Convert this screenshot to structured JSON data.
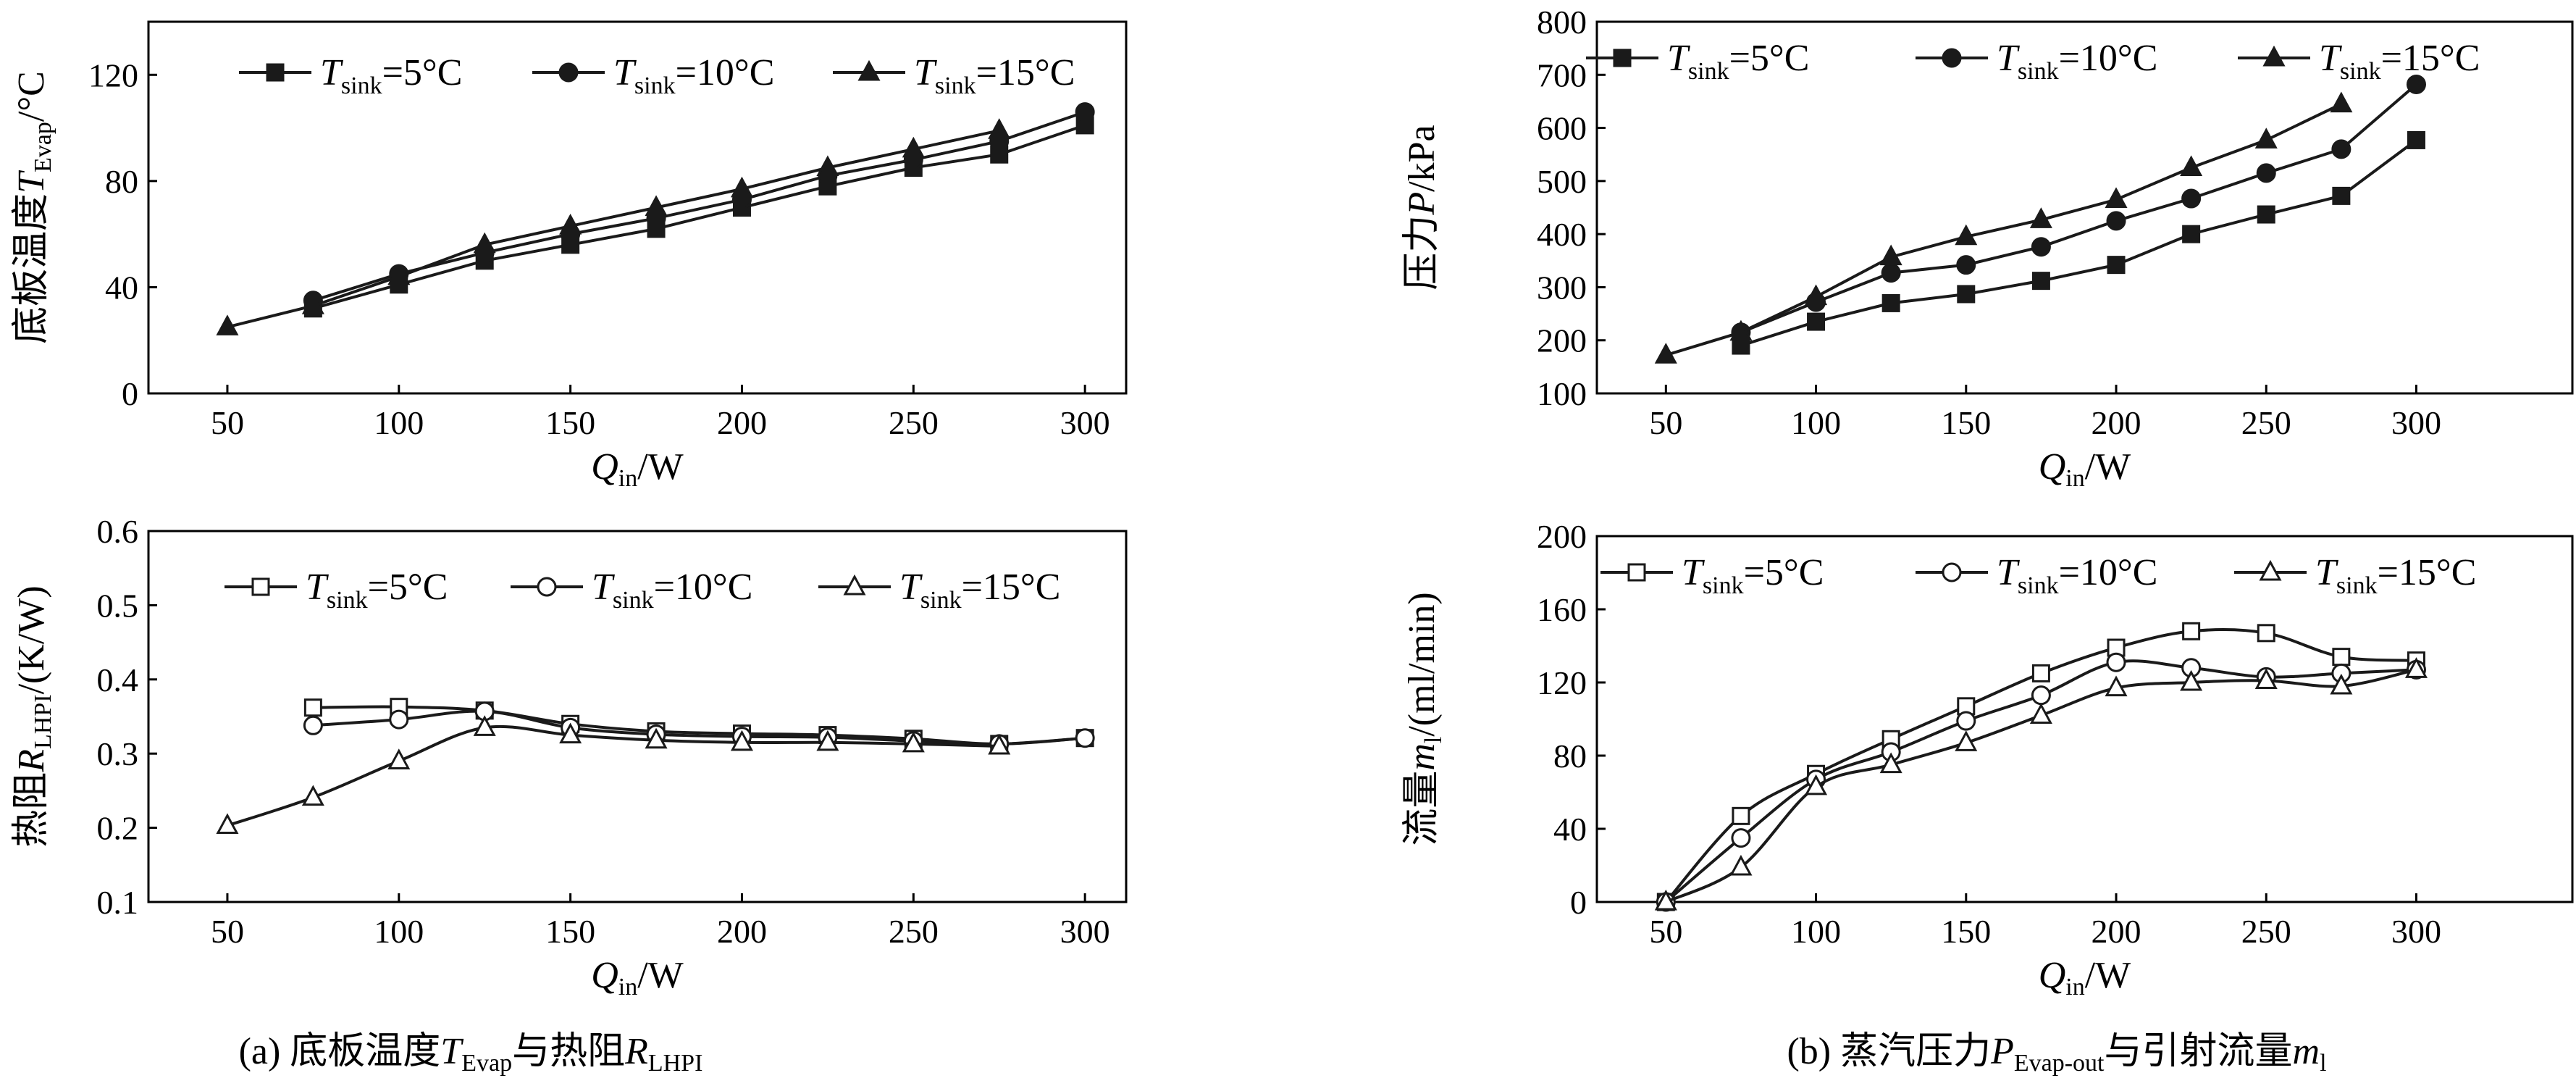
{
  "chart_data": [
    {
      "type": "line",
      "ylabel": "底板温度",
      "ylabel_symbol": "T",
      "ylabel_sub": "Evap",
      "ylabel_unit": "/°C",
      "xlabel_symbol": "Q",
      "xlabel_sub": "in",
      "xlabel_unit": "/W",
      "xlim": [
        27,
        312
      ],
      "ylim": [
        0,
        140
      ],
      "xticks": [
        50,
        100,
        150,
        200,
        250,
        300
      ],
      "yticks": [
        0,
        40,
        80,
        120
      ],
      "legend_position": "top",
      "marker_fill": "filled",
      "series": [
        {
          "name_symbol": "T",
          "name_sub": "sink",
          "name_rest": "=5°C",
          "marker": "square",
          "x": [
            75,
            100,
            125,
            150,
            175,
            200,
            225,
            250,
            275,
            300
          ],
          "y": [
            32,
            41,
            50,
            56,
            62,
            70,
            78,
            85,
            90,
            101
          ]
        },
        {
          "name_symbol": "T",
          "name_sub": "sink",
          "name_rest": "=10°C",
          "marker": "circle",
          "x": [
            75,
            100,
            125,
            150,
            175,
            200,
            225,
            250,
            275,
            300
          ],
          "y": [
            35,
            45,
            53,
            60,
            66,
            73,
            82,
            88,
            95,
            106
          ]
        },
        {
          "name_symbol": "T",
          "name_sub": "sink",
          "name_rest": "=15°C",
          "marker": "triangle",
          "x": [
            50,
            75,
            100,
            125,
            150,
            175,
            200,
            225,
            250,
            275
          ],
          "y": [
            25,
            33,
            44,
            56,
            63,
            70,
            77,
            85,
            92,
            99
          ]
        }
      ]
    },
    {
      "type": "line",
      "ylabel": "压力",
      "ylabel_symbol": "P",
      "ylabel_sub": "",
      "ylabel_unit": "/kPa",
      "xlabel_symbol": "Q",
      "xlabel_sub": "in",
      "xlabel_unit": "/W",
      "xlim": [
        27,
        352
      ],
      "ylim": [
        100,
        800
      ],
      "xticks": [
        50,
        100,
        150,
        200,
        250,
        300
      ],
      "yticks": [
        100,
        200,
        300,
        400,
        500,
        600,
        700,
        800
      ],
      "legend_position": "top",
      "marker_fill": "filled",
      "series": [
        {
          "name_symbol": "T",
          "name_sub": "sink",
          "name_rest": "=5°C",
          "marker": "square",
          "x": [
            75,
            100,
            125,
            150,
            175,
            200,
            225,
            250,
            275,
            300
          ],
          "y": [
            190,
            235,
            270,
            287,
            312,
            342,
            400,
            437,
            472,
            577
          ]
        },
        {
          "name_symbol": "T",
          "name_sub": "sink",
          "name_rest": "=10°C",
          "marker": "circle",
          "x": [
            75,
            100,
            125,
            150,
            175,
            200,
            225,
            250,
            275,
            300
          ],
          "y": [
            215,
            272,
            327,
            342,
            376,
            425,
            467,
            515,
            560,
            682
          ]
        },
        {
          "name_symbol": "T",
          "name_sub": "sink",
          "name_rest": "=15°C",
          "marker": "triangle",
          "x": [
            50,
            75,
            100,
            125,
            150,
            175,
            200,
            225,
            250,
            275
          ],
          "y": [
            172,
            215,
            282,
            357,
            395,
            427,
            465,
            525,
            577,
            645
          ]
        }
      ]
    },
    {
      "type": "line",
      "ylabel": "热阻",
      "ylabel_symbol": "R",
      "ylabel_sub": "LHPI",
      "ylabel_unit": "/(K/W)",
      "xlabel_symbol": "Q",
      "xlabel_sub": "in",
      "xlabel_unit": "/W",
      "xlim": [
        27,
        312
      ],
      "ylim": [
        0.1,
        0.6
      ],
      "xticks": [
        50,
        100,
        150,
        200,
        250,
        300
      ],
      "yticks": [
        0.1,
        0.2,
        0.3,
        0.4,
        0.5,
        0.6
      ],
      "legend_position": "top",
      "marker_fill": "hollow",
      "series": [
        {
          "name_symbol": "T",
          "name_sub": "sink",
          "name_rest": "=5°C",
          "marker": "square",
          "x": [
            75,
            100,
            125,
            150,
            175,
            200,
            225,
            250,
            275,
            300
          ],
          "y": [
            0.362,
            0.363,
            0.358,
            0.34,
            0.33,
            0.327,
            0.325,
            0.32,
            0.313,
            0.321
          ]
        },
        {
          "name_symbol": "T",
          "name_sub": "sink",
          "name_rest": "=10°C",
          "marker": "circle",
          "x": [
            75,
            100,
            125,
            150,
            175,
            200,
            225,
            250,
            275,
            300
          ],
          "y": [
            0.338,
            0.346,
            0.357,
            0.335,
            0.326,
            0.323,
            0.322,
            0.317,
            0.313,
            0.321
          ]
        },
        {
          "name_symbol": "T",
          "name_sub": "sink",
          "name_rest": "=15°C",
          "marker": "triangle",
          "x": [
            50,
            75,
            100,
            125,
            150,
            175,
            200,
            225,
            250,
            275
          ],
          "y": [
            0.203,
            0.241,
            0.29,
            0.335,
            0.325,
            0.318,
            0.315,
            0.315,
            0.313,
            0.31
          ]
        }
      ]
    },
    {
      "type": "line",
      "ylabel": "流量",
      "ylabel_symbol": "m",
      "ylabel_sub": "l",
      "ylabel_unit": "/(ml/min)",
      "xlabel_symbol": "Q",
      "xlabel_sub": "in",
      "xlabel_unit": "/W",
      "xlim": [
        27,
        352
      ],
      "ylim": [
        0,
        200
      ],
      "xticks": [
        50,
        100,
        150,
        200,
        250,
        300
      ],
      "yticks": [
        0,
        40,
        80,
        120,
        160,
        200
      ],
      "legend_position": "top",
      "marker_fill": "hollow",
      "series": [
        {
          "name_symbol": "T",
          "name_sub": "sink",
          "name_rest": "=5°C",
          "marker": "square",
          "x": [
            50,
            75,
            100,
            125,
            150,
            175,
            200,
            225,
            250,
            275,
            300
          ],
          "y": [
            0,
            47,
            70,
            89,
            107,
            125,
            139,
            148,
            147,
            134,
            132
          ]
        },
        {
          "name_symbol": "T",
          "name_sub": "sink",
          "name_rest": "=10°C",
          "marker": "circle",
          "x": [
            50,
            75,
            100,
            125,
            150,
            175,
            200,
            225,
            250,
            275,
            300
          ],
          "y": [
            0,
            35,
            67,
            82,
            99,
            113,
            131,
            128,
            123,
            125,
            127
          ]
        },
        {
          "name_symbol": "T",
          "name_sub": "sink",
          "name_rest": "=15°C",
          "marker": "triangle",
          "x": [
            50,
            75,
            100,
            125,
            150,
            175,
            200,
            225,
            250,
            275,
            300
          ],
          "y": [
            0,
            19,
            63,
            75,
            87,
            102,
            117,
            120,
            121,
            118,
            127
          ]
        }
      ]
    }
  ],
  "captions": {
    "left": {
      "prefix": "(a) 底板温度",
      "sym1": "T",
      "sub1": "Evap",
      "mid": "与热阻",
      "sym2": "R",
      "sub2": "LHPI"
    },
    "right": {
      "prefix": "(b) 蒸汽压力",
      "sym1": "P",
      "sub1": "Evap-out",
      "mid": "与引射流量",
      "sym2": "m",
      "sub2": "l"
    }
  },
  "colors": {
    "line": "#1a1a1a",
    "axis": "#000000",
    "background": "#ffffff"
  }
}
